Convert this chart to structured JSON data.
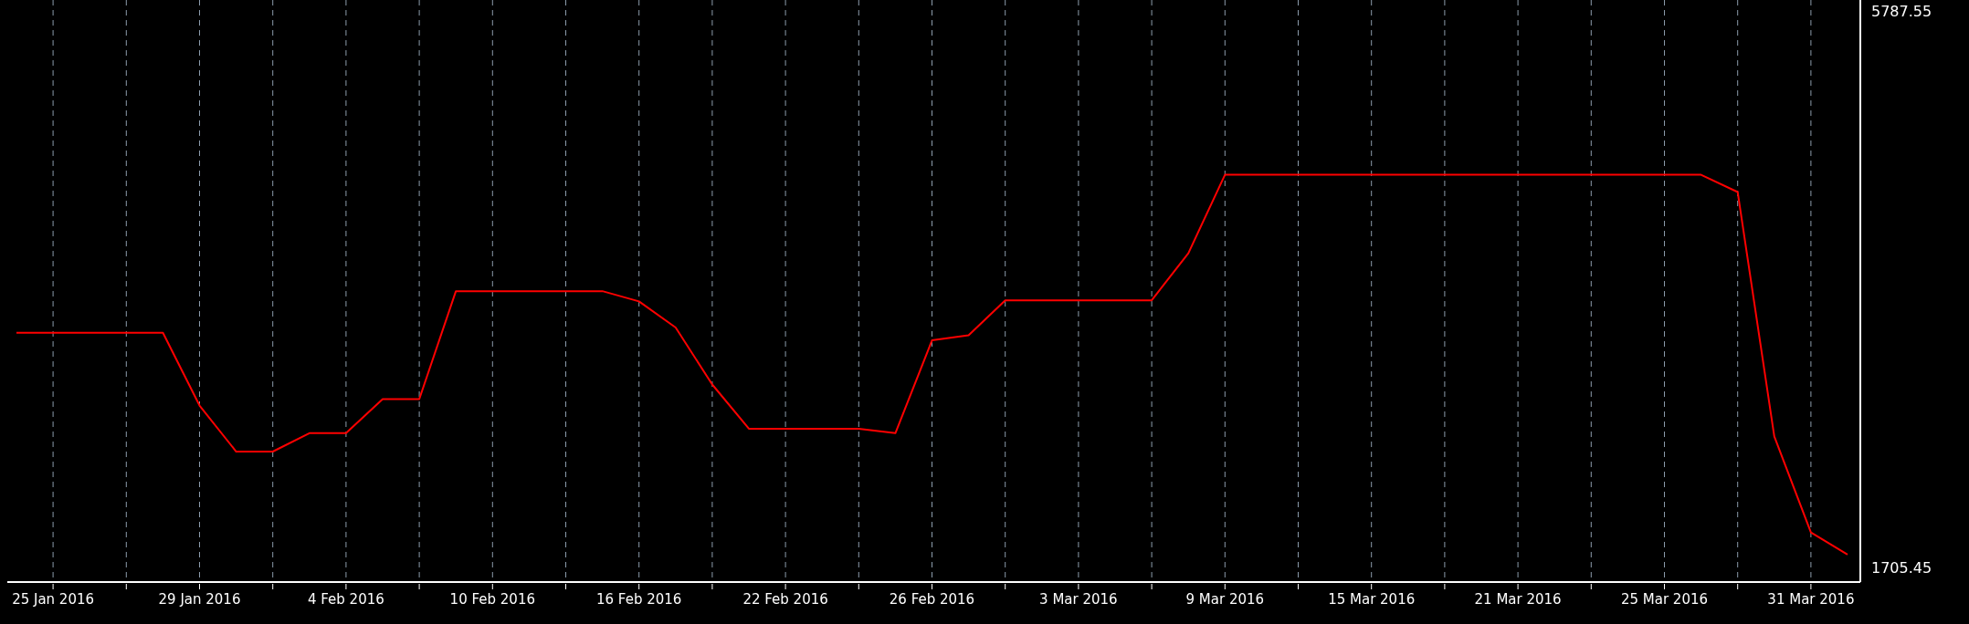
{
  "chart_data": {
    "type": "line",
    "categories": [
      null,
      "25 Jan 2016",
      null,
      null,
      null,
      "29 Jan 2016",
      null,
      null,
      null,
      "4 Feb 2016",
      null,
      null,
      null,
      "10 Feb 2016",
      null,
      null,
      null,
      "16 Feb 2016",
      null,
      null,
      null,
      "22 Feb 2016",
      null,
      null,
      null,
      "26 Feb 2016",
      null,
      null,
      null,
      "3 Mar 2016",
      null,
      null,
      null,
      "9 Mar 2016",
      null,
      null,
      null,
      "15 Mar 2016",
      null,
      null,
      null,
      "21 Mar 2016",
      null,
      null,
      null,
      "25 Mar 2016",
      null,
      null,
      null,
      "31 Mar 2016",
      null
    ],
    "series": [
      {
        "color": "#ff0000",
        "values": [
          3427,
          3427,
          3427,
          3427,
          3427,
          2893,
          2555,
          2555,
          2690,
          2690,
          2940,
          2940,
          3732,
          3732,
          3732,
          3732,
          3732,
          3657,
          3465,
          3047,
          2723,
          2723,
          2723,
          2723,
          2690,
          3371,
          3408,
          3665,
          3665,
          3665,
          3665,
          3665,
          4010,
          4586,
          4586,
          4586,
          4586,
          4586,
          4586,
          4586,
          4586,
          4586,
          4586,
          4586,
          4586,
          4586,
          4586,
          4459,
          2666,
          1962,
          1800
        ]
      }
    ],
    "ylim": [
      1598,
      5868
    ],
    "yticks": [
      1705.45,
      5787.55
    ],
    "grid": "x",
    "marker": "none",
    "line_style": "solid",
    "legend": false
  }
}
